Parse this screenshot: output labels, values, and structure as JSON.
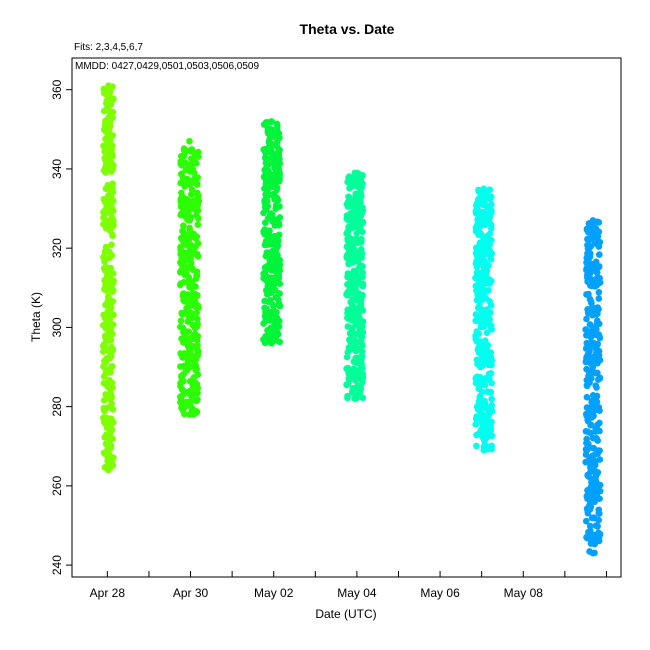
{
  "chart_data": {
    "type": "scatter",
    "title": "Theta  vs. Date",
    "fits_note": "Fits: 2,3,4,5,6,7",
    "mmdd_note": "MMDD: 0427,0429,0501,0503,0506,0509",
    "xlabel": "Date (UTC)",
    "ylabel": "Theta (K)",
    "x_tick_labels": [
      "Apr 28",
      "Apr 30",
      "May 02",
      "May 04",
      "May 06",
      "May 08"
    ],
    "y_tick_labels": [
      "240",
      "260",
      "280",
      "300",
      "320",
      "340",
      "360"
    ],
    "ylim": [
      237,
      368
    ],
    "xlim_days_from_apr27": [
      0.15,
      13.35
    ],
    "grid": false,
    "series": [
      {
        "date": "Apr 28",
        "color": "#7fff00",
        "x_range_days": [
          0.9,
          1.15
        ],
        "y_range": [
          264,
          361
        ]
      },
      {
        "date": "Apr 30",
        "color": "#2bff00",
        "x_range_days": [
          2.75,
          3.2
        ],
        "y_range": [
          278,
          347
        ]
      },
      {
        "date": "May 02",
        "color": "#00f53a",
        "x_range_days": [
          4.75,
          5.15
        ],
        "y_range": [
          296,
          352
        ]
      },
      {
        "date": "May 04",
        "color": "#00ff99",
        "x_range_days": [
          6.75,
          7.15
        ],
        "y_range": [
          282,
          339
        ]
      },
      {
        "date": "May 07",
        "color": "#00ffee",
        "x_range_days": [
          9.85,
          10.25
        ],
        "y_range": [
          269,
          335
        ]
      },
      {
        "date": "May 09",
        "color": "#00a0ff",
        "x_range_days": [
          12.5,
          12.85
        ],
        "y_range": [
          243,
          327
        ]
      }
    ]
  }
}
